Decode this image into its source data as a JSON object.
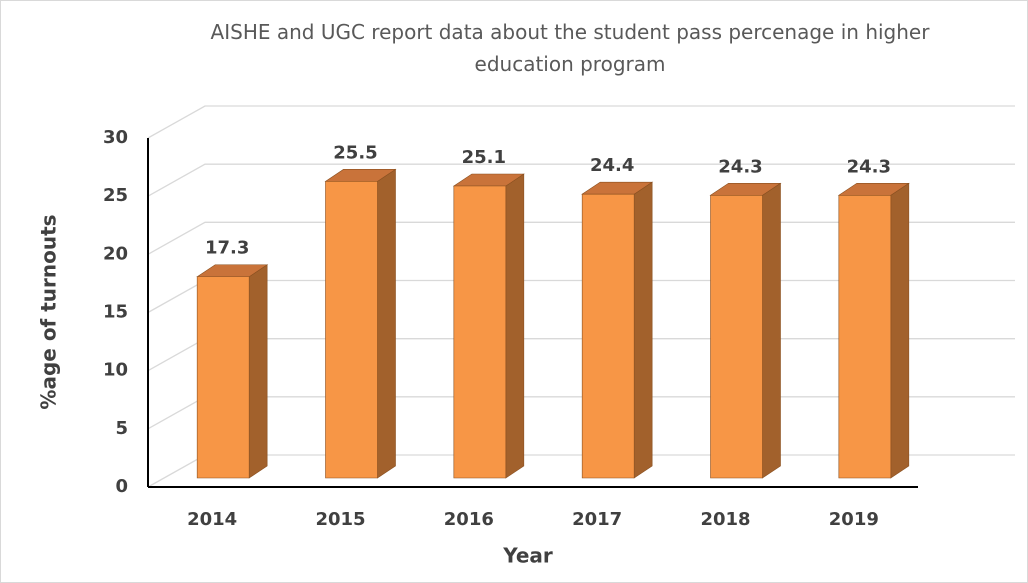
{
  "chart_data": {
    "type": "bar3d",
    "title": "AISHE and UGC report data about the student pass percenage in higher education program",
    "x_label": "Year",
    "y_label": "%age of turnouts",
    "categories": [
      "2014",
      "2015",
      "2016",
      "2017",
      "2018",
      "2019"
    ],
    "values": [
      17.3,
      25.5,
      25.1,
      24.4,
      24.3,
      24.3
    ],
    "color": "#f79646",
    "ylim": [
      0,
      30
    ],
    "yticks": [
      0,
      5,
      10,
      15,
      20,
      25,
      30
    ],
    "grid": true
  }
}
